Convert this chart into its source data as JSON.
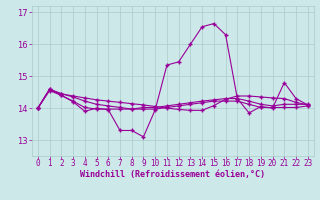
{
  "x": [
    0,
    1,
    2,
    3,
    4,
    5,
    6,
    7,
    8,
    9,
    10,
    11,
    12,
    13,
    14,
    15,
    16,
    17,
    18,
    19,
    20,
    21,
    22,
    23
  ],
  "y_main": [
    14.0,
    14.6,
    14.4,
    14.2,
    13.9,
    14.0,
    13.95,
    13.3,
    13.3,
    13.1,
    13.95,
    15.35,
    15.45,
    16.0,
    16.55,
    16.65,
    16.3,
    14.3,
    13.85,
    14.05,
    14.0,
    14.8,
    14.3,
    14.1
  ],
  "y_line2": [
    14.0,
    14.6,
    14.45,
    14.38,
    14.32,
    14.26,
    14.22,
    14.18,
    14.14,
    14.1,
    14.05,
    14.0,
    13.96,
    13.93,
    13.93,
    14.08,
    14.28,
    14.38,
    14.38,
    14.35,
    14.32,
    14.3,
    14.18,
    14.1
  ],
  "y_line3": [
    14.0,
    14.58,
    14.45,
    14.35,
    14.22,
    14.12,
    14.07,
    14.02,
    13.97,
    14.02,
    14.02,
    14.07,
    14.12,
    14.17,
    14.22,
    14.26,
    14.3,
    14.3,
    14.22,
    14.12,
    14.07,
    14.12,
    14.12,
    14.12
  ],
  "y_line4": [
    14.0,
    14.55,
    14.4,
    14.22,
    14.02,
    13.97,
    13.97,
    13.97,
    13.97,
    13.97,
    13.97,
    14.02,
    14.07,
    14.12,
    14.17,
    14.22,
    14.22,
    14.22,
    14.12,
    14.02,
    14.02,
    14.02,
    14.02,
    14.07
  ],
  "color": "#990099",
  "bg_color": "#cce8e8",
  "grid_color": "#aacccc",
  "xlabel": "Windchill (Refroidissement éolien,°C)",
  "ylim": [
    12.5,
    17.2
  ],
  "xlim": [
    -0.5,
    23.5
  ],
  "yticks": [
    13,
    14,
    15,
    16,
    17
  ],
  "xticks": [
    0,
    1,
    2,
    3,
    4,
    5,
    6,
    7,
    8,
    9,
    10,
    11,
    12,
    13,
    14,
    15,
    16,
    17,
    18,
    19,
    20,
    21,
    22,
    23
  ],
  "marker": "+",
  "markersize": 3,
  "linewidth": 0.8,
  "tick_fontsize": 5.5,
  "xlabel_fontsize": 6.0
}
